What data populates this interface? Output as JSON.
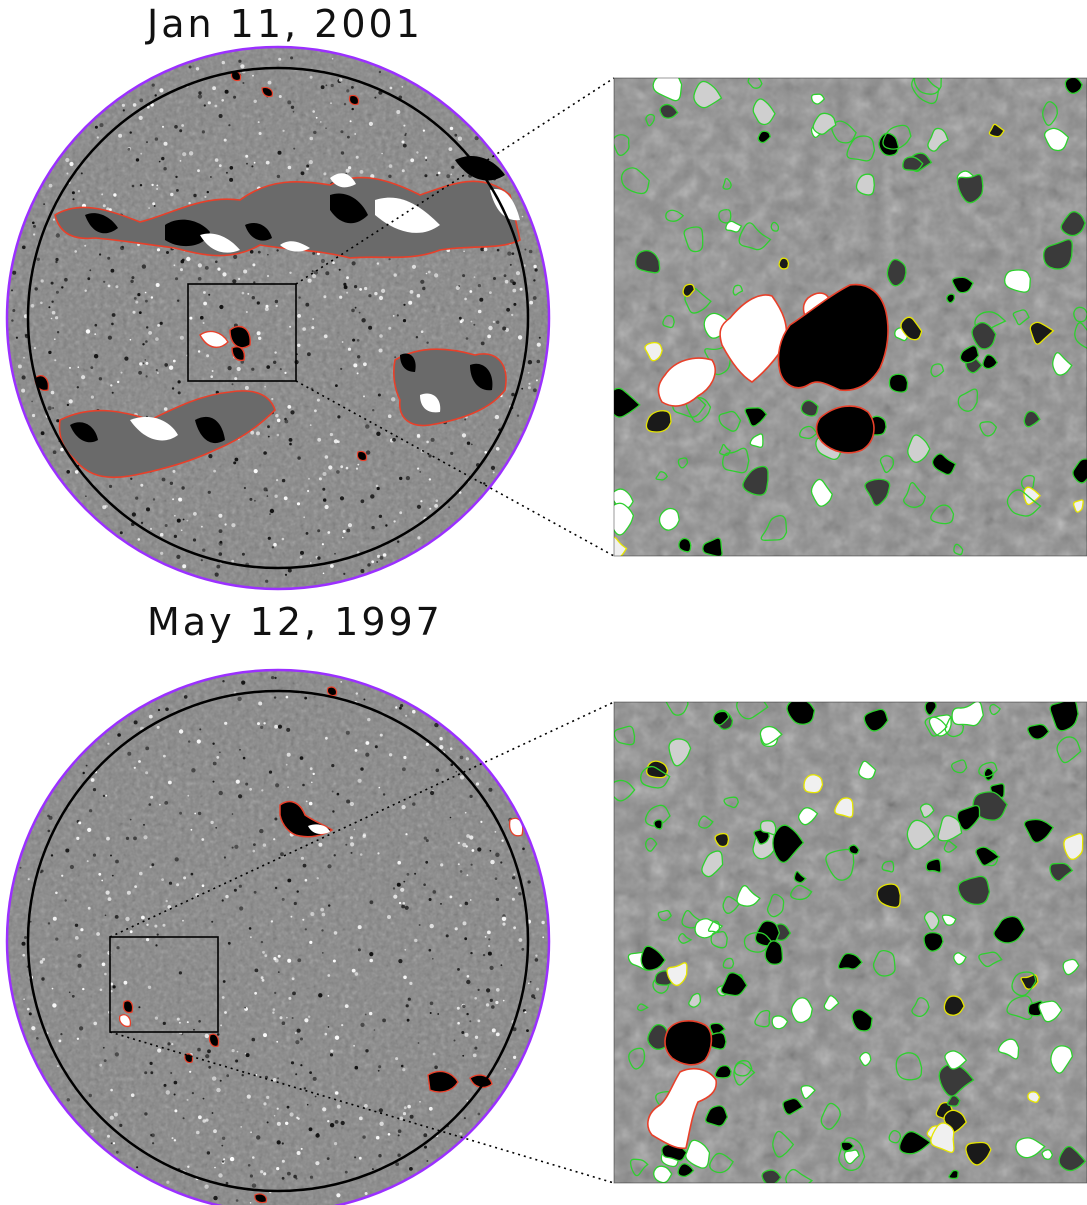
{
  "panels": [
    {
      "id": "top",
      "date_label": "Jan 11, 2001",
      "colors": {
        "disk_rim": "#9b30ff",
        "disk_bg": "#808080",
        "active_region_contour": "#e8402a",
        "positive_flux": "#ffffff",
        "negative_flux": "#000000",
        "ephemeral_contour_green": "#2ed02e",
        "ephemeral_contour_yellow": "#e6e600"
      },
      "activity": "high"
    },
    {
      "id": "bottom",
      "date_label": "May 12, 1997",
      "colors": {
        "disk_rim": "#9b30ff",
        "disk_bg": "#808080",
        "active_region_contour": "#e8402a",
        "positive_flux": "#ffffff",
        "negative_flux": "#000000",
        "ephemeral_contour_green": "#2ed02e",
        "ephemeral_contour_yellow": "#e6e600"
      },
      "activity": "low"
    }
  ]
}
